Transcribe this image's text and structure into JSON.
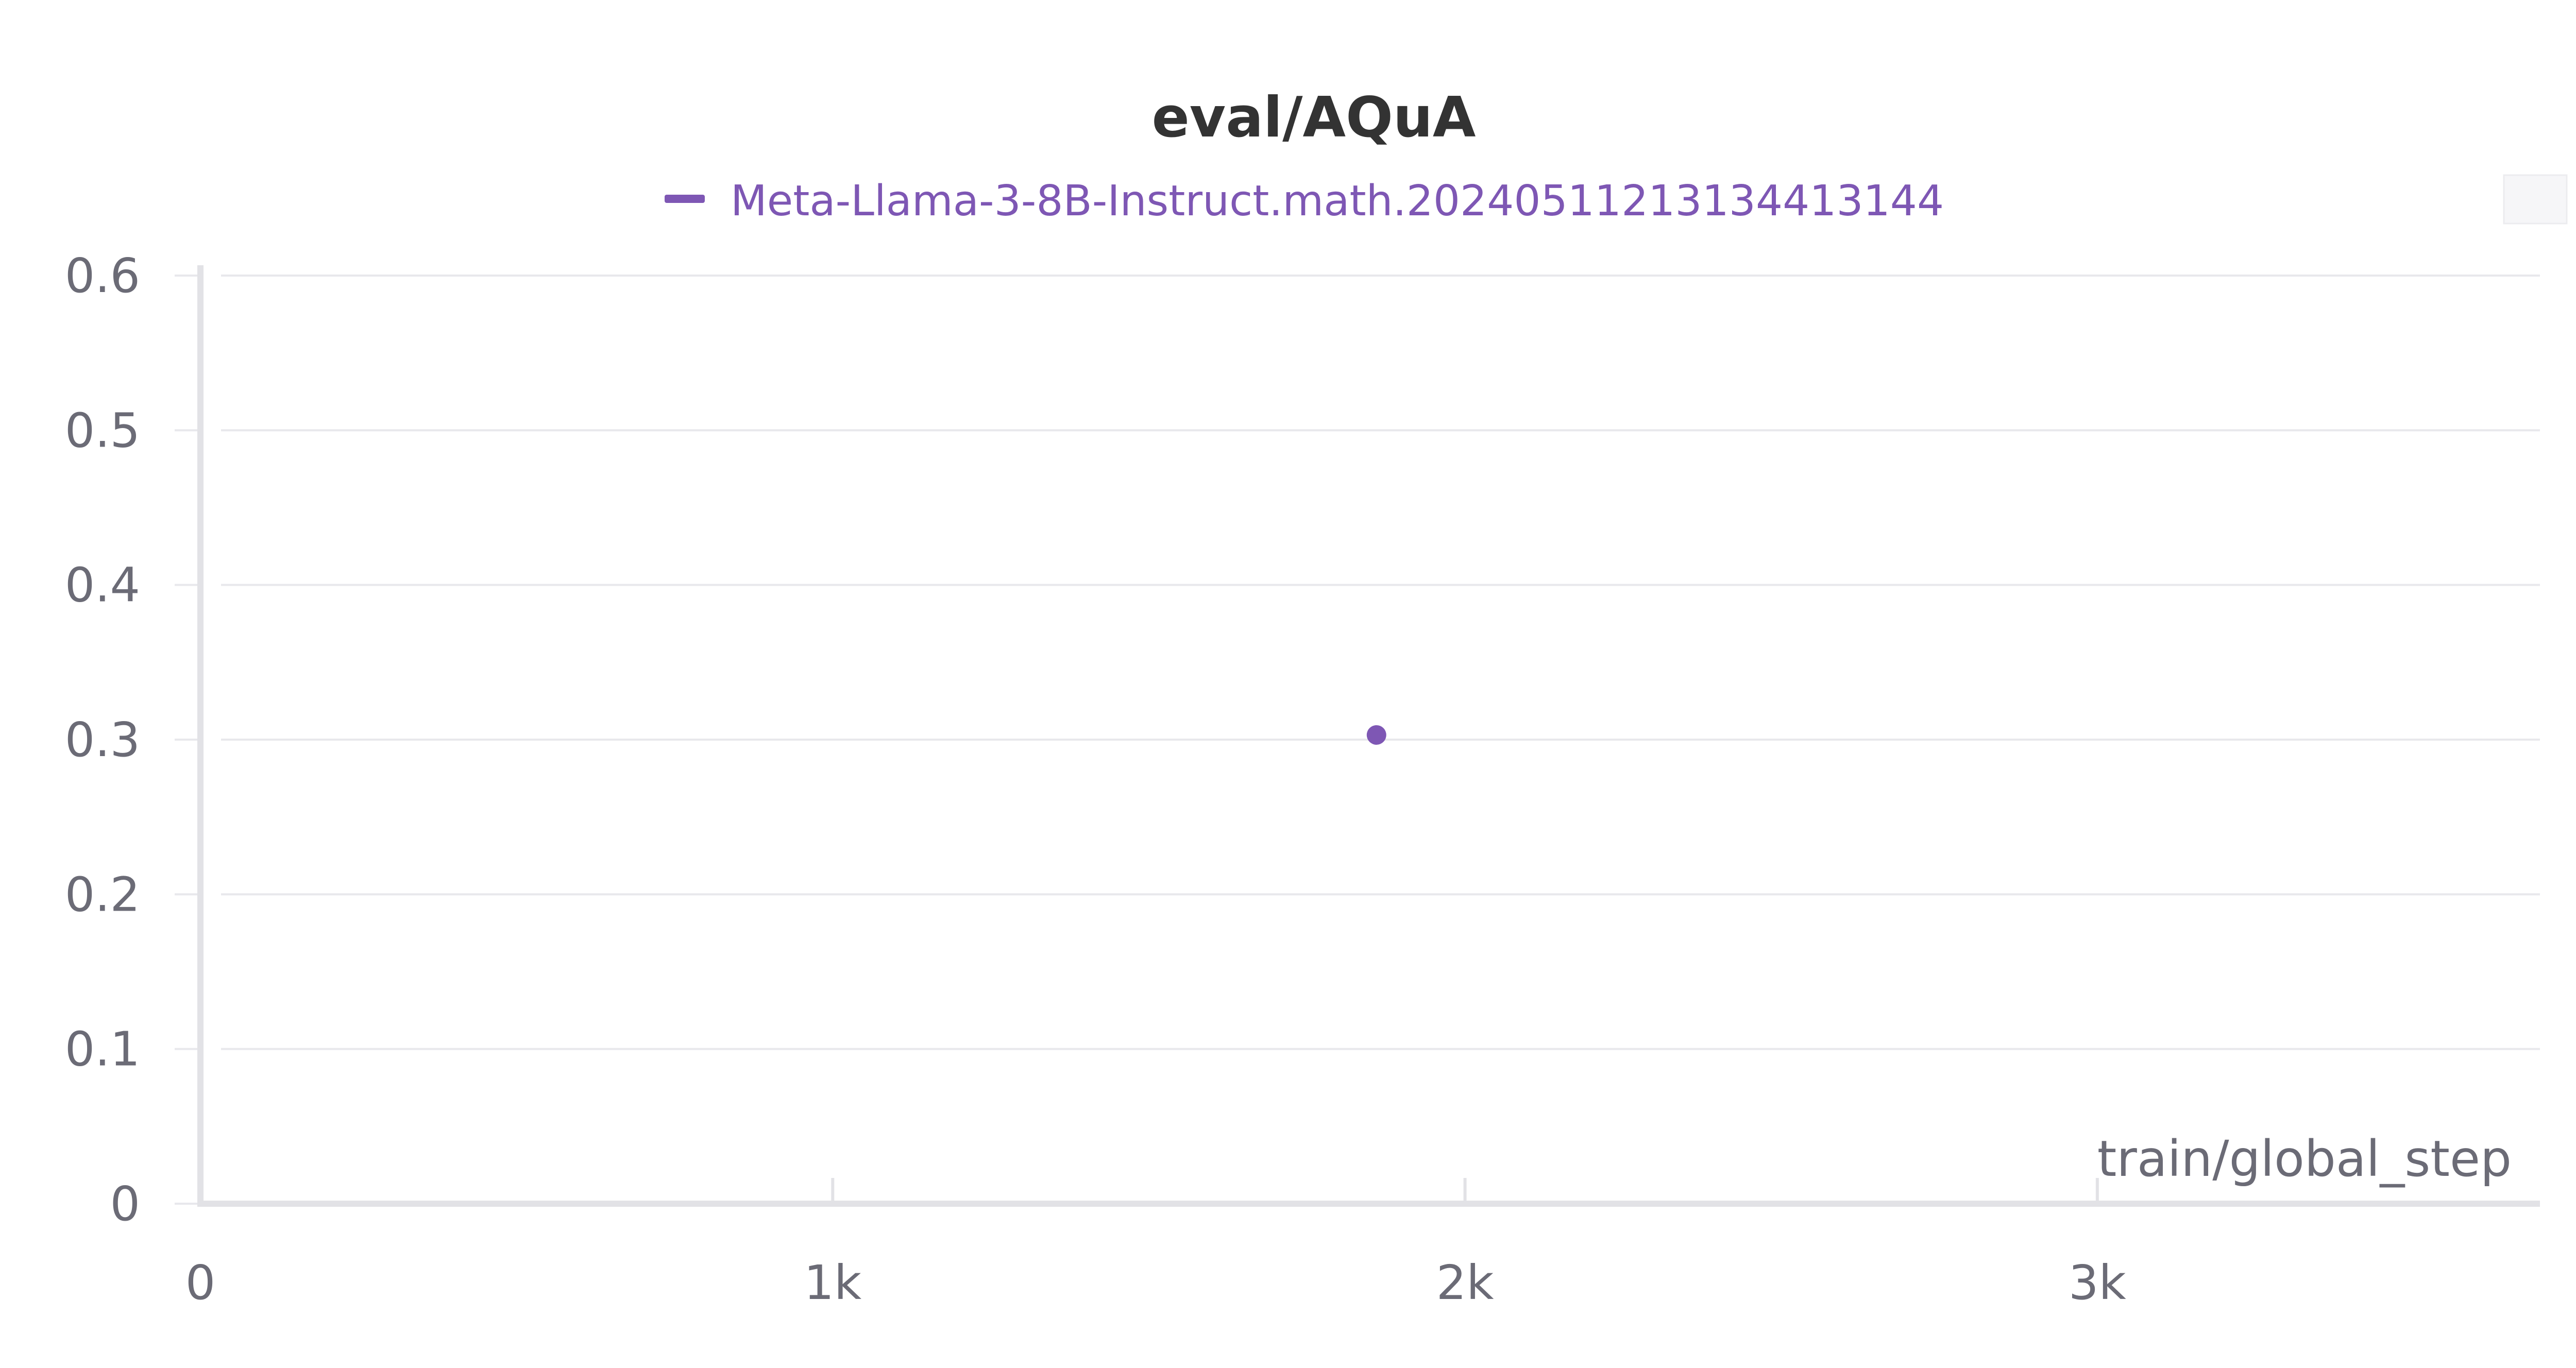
{
  "colors": {
    "series": "#7e57b4",
    "title": "#333333",
    "tick_text": "#6b6b76",
    "grid": "#e8e8ec",
    "axis": "#e2e2e6",
    "corner_box": "#f6f6f8"
  },
  "chart_data": {
    "type": "scatter",
    "title": "eval/AQuA",
    "xlabel": "train/global_step",
    "ylabel": "",
    "xlim": [
      0,
      3700
    ],
    "ylim": [
      0,
      0.6
    ],
    "x_ticks": [
      0,
      1000,
      2000,
      3000
    ],
    "x_tick_labels": [
      "0",
      "1k",
      "2k",
      "3k"
    ],
    "y_ticks": [
      0,
      0.1,
      0.2,
      0.3,
      0.4,
      0.5,
      0.6
    ],
    "y_tick_labels": [
      "0",
      "0.1",
      "0.2",
      "0.3",
      "0.4",
      "0.5",
      "0.6"
    ],
    "grid": true,
    "legend_position": "top-center",
    "series": [
      {
        "name": "Meta-Llama-3-8B-Instruct.math.20240511213134413144",
        "points": [
          {
            "x": 1860,
            "y": 0.303
          }
        ]
      }
    ]
  }
}
